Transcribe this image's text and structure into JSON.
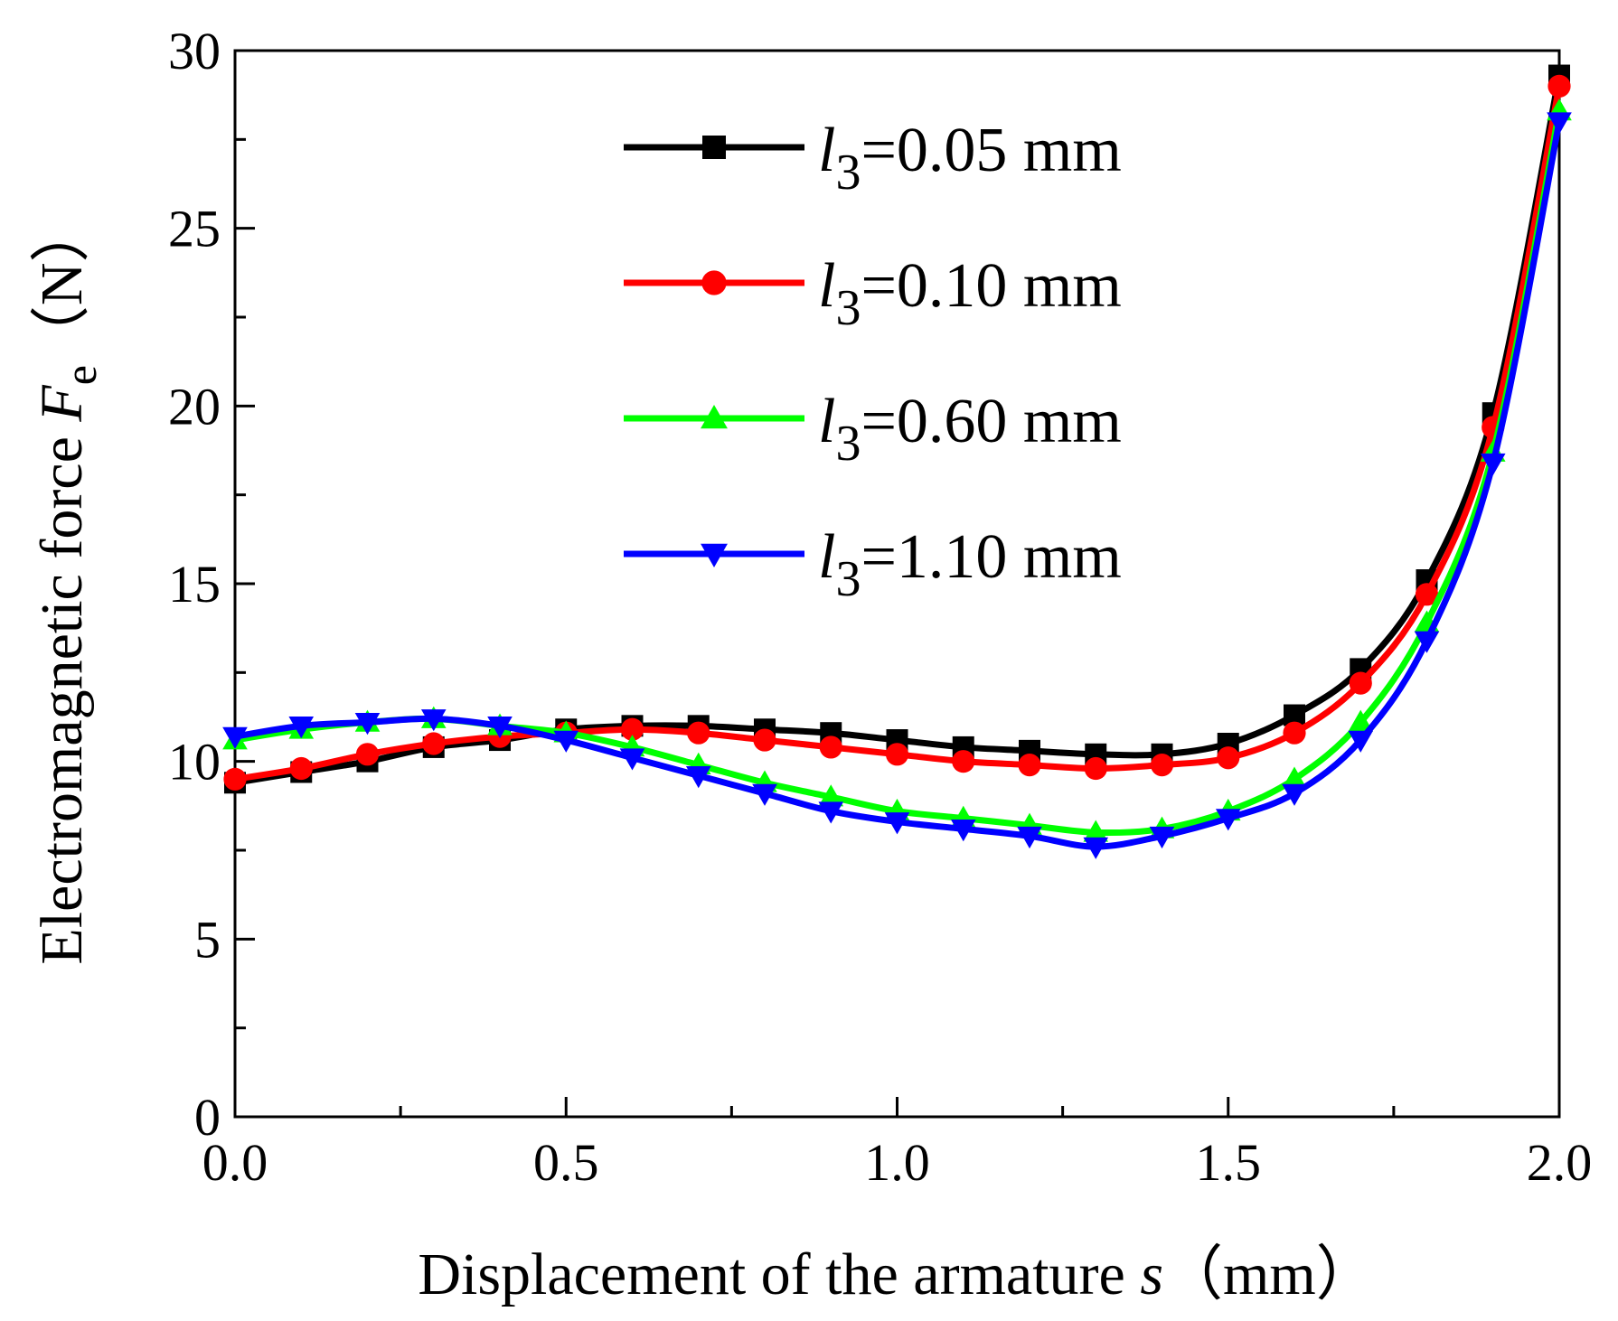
{
  "chart_data": {
    "type": "line",
    "xlabel": "Displacement of the armature s（mm）",
    "xlabel_parts": {
      "prefix": "Displacement of the armature ",
      "var": "s",
      "unit": "（mm）"
    },
    "ylabel": "Electromagnetic force Fe（N）",
    "ylabel_parts": {
      "prefix": "Electromagnetic force ",
      "var": "F",
      "sub": "e",
      "unit": "（N）"
    },
    "xlim": [
      0.0,
      2.0
    ],
    "ylim": [
      0,
      30
    ],
    "x_ticks": [
      "0.0",
      "0.5",
      "1.0",
      "1.5",
      "2.0"
    ],
    "y_ticks": [
      "0",
      "5",
      "10",
      "15",
      "20",
      "25",
      "30"
    ],
    "x": [
      0.0,
      0.1,
      0.2,
      0.3,
      0.4,
      0.5,
      0.6,
      0.7,
      0.8,
      0.9,
      1.0,
      1.1,
      1.2,
      1.3,
      1.4,
      1.5,
      1.6,
      1.7,
      1.8,
      1.9,
      2.0
    ],
    "legend_position": "top-center",
    "series": [
      {
        "name": "l3=0.05 mm",
        "label_var": "l",
        "label_sub": "3",
        "label_value": "=0.05 mm",
        "color": "#000000",
        "marker": "square",
        "values": [
          9.4,
          9.7,
          10.0,
          10.4,
          10.6,
          10.9,
          11.0,
          11.0,
          10.9,
          10.8,
          10.6,
          10.4,
          10.3,
          10.2,
          10.2,
          10.5,
          11.3,
          12.6,
          15.1,
          19.8,
          29.3
        ]
      },
      {
        "name": "l3=0.10 mm",
        "label_var": "l",
        "label_sub": "3",
        "label_value": "=0.10 mm",
        "color": "#ff0000",
        "marker": "circle",
        "values": [
          9.5,
          9.8,
          10.2,
          10.5,
          10.7,
          10.8,
          10.9,
          10.8,
          10.6,
          10.4,
          10.2,
          10.0,
          9.9,
          9.8,
          9.9,
          10.1,
          10.8,
          12.2,
          14.7,
          19.4,
          29.0
        ]
      },
      {
        "name": "l3=0.60 mm",
        "label_var": "l",
        "label_sub": "3",
        "label_value": "=0.60 mm",
        "color": "#00ff00",
        "marker": "triangle-up",
        "values": [
          10.6,
          10.9,
          11.1,
          11.2,
          11.0,
          10.8,
          10.4,
          9.9,
          9.4,
          9.0,
          8.6,
          8.4,
          8.2,
          8.0,
          8.1,
          8.6,
          9.5,
          11.1,
          13.9,
          18.7,
          28.3
        ]
      },
      {
        "name": "l3=1.10 mm",
        "label_var": "l",
        "label_sub": "3",
        "label_value": "=1.10 mm",
        "color": "#0000ff",
        "marker": "triangle-down",
        "values": [
          10.7,
          11.0,
          11.1,
          11.2,
          11.0,
          10.6,
          10.1,
          9.6,
          9.1,
          8.6,
          8.3,
          8.1,
          7.9,
          7.6,
          7.9,
          8.4,
          9.1,
          10.6,
          13.4,
          18.4,
          28.0
        ]
      }
    ]
  }
}
